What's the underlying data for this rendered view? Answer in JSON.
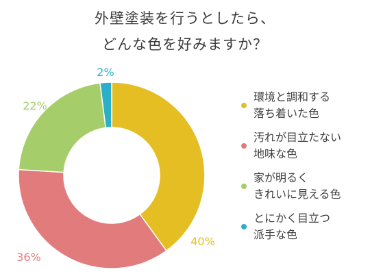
{
  "title": {
    "line1": "外壁塗装を行うとしたら、",
    "line2": "どんな色を好みますか？"
  },
  "chart_data": {
    "type": "pie",
    "donut": true,
    "slices": [
      {
        "label_lines": [
          "環境と調和する",
          "落ち着いた色"
        ],
        "value": 40,
        "label": "40%",
        "color": "#E5BE23"
      },
      {
        "label_lines": [
          "汚れが目立たない",
          "地味な色"
        ],
        "value": 36,
        "label": "36%",
        "color": "#E27C7C"
      },
      {
        "label_lines": [
          "家が明るく",
          "きれいに見える色"
        ],
        "value": 22,
        "label": "22%",
        "color": "#A5CD69"
      },
      {
        "label_lines": [
          "とにかく目立つ",
          "派手な色"
        ],
        "value": 2,
        "label": "2%",
        "color": "#2BAFC9"
      }
    ],
    "legend_position": "right"
  }
}
